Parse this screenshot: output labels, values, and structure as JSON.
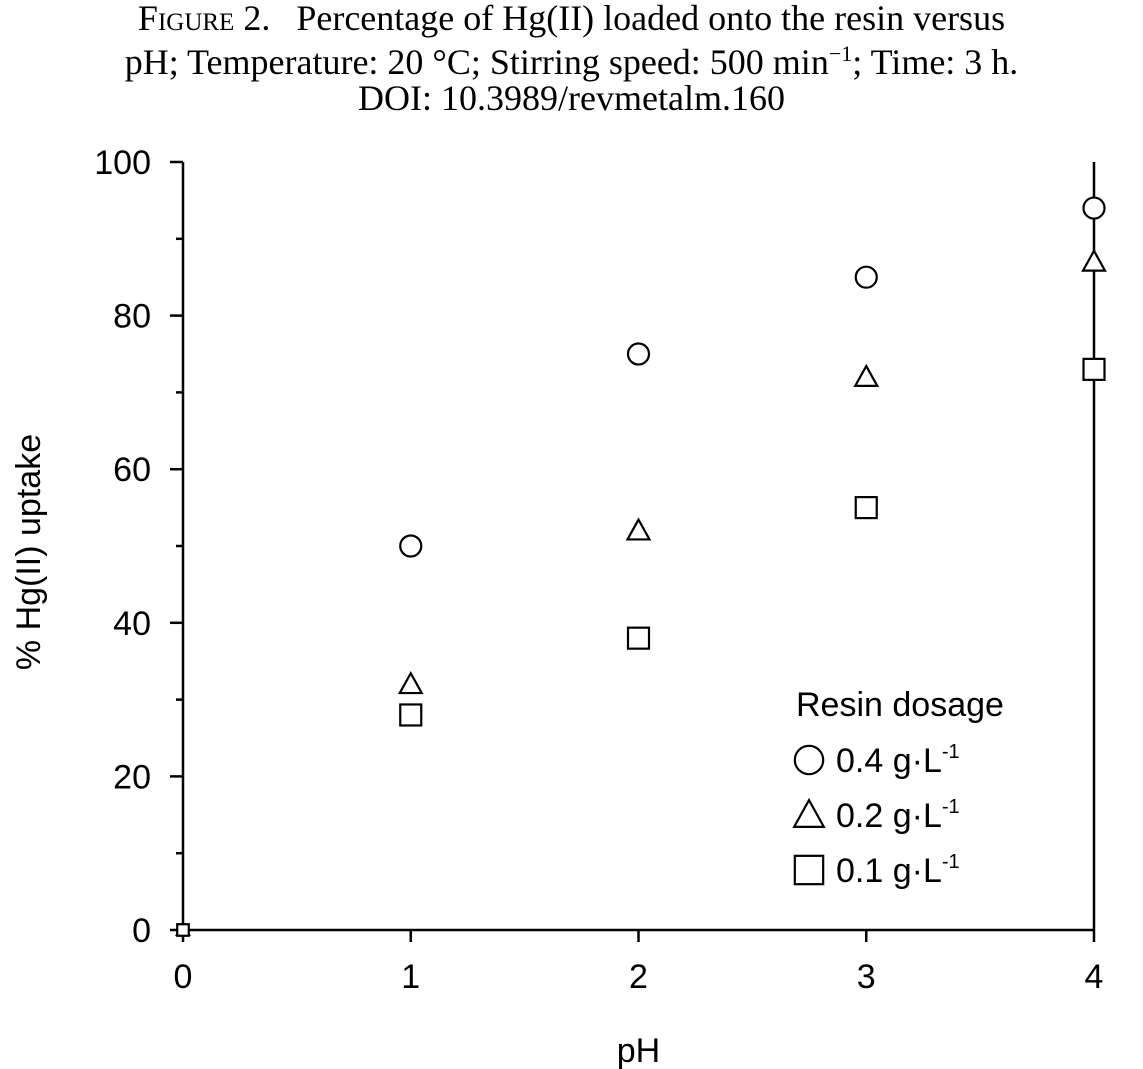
{
  "caption": {
    "figure_label": "Figure 2.",
    "line1_text": "Percentage of Hg(II) loaded onto the resin versus",
    "line2_prefix": "pH; Temperature: 20 °C; Stirring speed: 500 min",
    "line2_exponent": "−1",
    "line2_suffix": "; Time: 3 h.",
    "line3": "DOI: 10.3989/revmetalm.160"
  },
  "chart_data": {
    "type": "scatter",
    "xlabel": "pH",
    "ylabel": "% Hg(II) uptake",
    "xlim": [
      0,
      4
    ],
    "ylim": [
      0,
      100
    ],
    "x_ticks": [
      0,
      1,
      2,
      3,
      4
    ],
    "y_ticks": [
      0,
      20,
      40,
      60,
      80,
      100
    ],
    "y_minor_ticks": [
      10,
      30,
      50,
      70,
      90
    ],
    "grid": false,
    "legend": {
      "title": "Resin dosage",
      "placement": "bottom-right",
      "entries": [
        {
          "marker": "circle",
          "label": "0.4 g·L",
          "exponent": "-1"
        },
        {
          "marker": "triangle",
          "label": "0.2 g·L",
          "exponent": "-1"
        },
        {
          "marker": "square",
          "label": "0.1 g·L",
          "exponent": "-1"
        }
      ]
    },
    "series": [
      {
        "marker": "circle",
        "x": [
          0,
          1,
          2,
          3,
          4
        ],
        "y": [
          0,
          50,
          75,
          85,
          94
        ]
      },
      {
        "marker": "triangle",
        "x": [
          0,
          1,
          2,
          3,
          4
        ],
        "y": [
          0,
          32,
          52,
          72,
          87
        ]
      },
      {
        "marker": "square",
        "x": [
          0,
          1,
          2,
          3,
          4
        ],
        "y": [
          0,
          28,
          38,
          55,
          73
        ]
      }
    ],
    "colors": {
      "marker_stroke": "#000000",
      "marker_fill": "#ffffff",
      "axis": "#000000"
    }
  }
}
